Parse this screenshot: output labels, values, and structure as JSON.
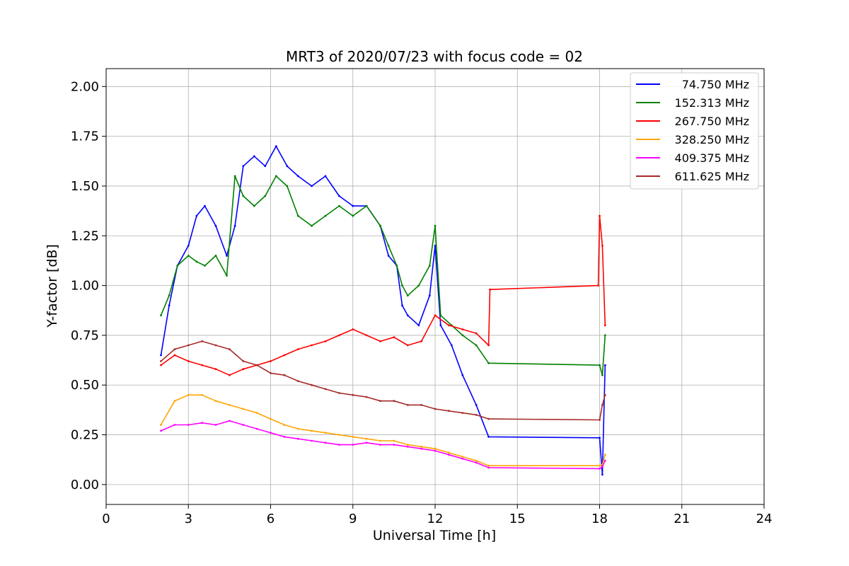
{
  "chart_data": {
    "type": "line",
    "title": "MRT3 of 2020/07/23 with focus code = 02",
    "xlabel": "Universal Time [h]",
    "ylabel": "Y-factor [dB]",
    "xlim": [
      0,
      24
    ],
    "ylim": [
      -0.1,
      2.09
    ],
    "xticks": [
      0,
      3,
      6,
      9,
      12,
      15,
      18,
      21,
      24
    ],
    "yticks": [
      0.0,
      0.25,
      0.5,
      0.75,
      1.0,
      1.25,
      1.5,
      1.75,
      2.0
    ],
    "xtick_labels": [
      "0",
      "3",
      "6",
      "9",
      "12",
      "15",
      "18",
      "21",
      "24"
    ],
    "ytick_labels": [
      "0.00",
      "0.25",
      "0.50",
      "0.75",
      "1.00",
      "1.25",
      "1.50",
      "1.75",
      "2.00"
    ],
    "grid": true,
    "legend_position": "top-right",
    "series": [
      {
        "name": "74.750 MHz",
        "color": "#0000ff",
        "x": [
          2.0,
          2.3,
          2.6,
          3.0,
          3.3,
          3.6,
          4.0,
          4.4,
          4.7,
          5.0,
          5.4,
          5.8,
          6.2,
          6.6,
          7.0,
          7.5,
          8.0,
          8.5,
          9.0,
          9.5,
          10.0,
          10.3,
          10.6,
          10.8,
          11.0,
          11.4,
          11.8,
          12.0,
          12.2,
          12.6,
          13.0,
          13.5,
          13.95,
          18.0,
          18.1,
          18.2
        ],
        "y": [
          0.65,
          0.9,
          1.1,
          1.2,
          1.35,
          1.4,
          1.3,
          1.15,
          1.3,
          1.6,
          1.65,
          1.6,
          1.7,
          1.6,
          1.55,
          1.5,
          1.55,
          1.45,
          1.4,
          1.4,
          1.3,
          1.15,
          1.1,
          0.9,
          0.85,
          0.8,
          0.95,
          1.2,
          0.8,
          0.7,
          0.55,
          0.4,
          0.24,
          0.235,
          0.05,
          0.6
        ]
      },
      {
        "name": "152.313 MHz",
        "color": "#008000",
        "x": [
          2.0,
          2.3,
          2.6,
          3.0,
          3.3,
          3.6,
          4.0,
          4.4,
          4.7,
          5.0,
          5.4,
          5.8,
          6.2,
          6.6,
          7.0,
          7.5,
          8.0,
          8.5,
          9.0,
          9.5,
          10.0,
          10.3,
          10.6,
          10.8,
          11.0,
          11.4,
          11.8,
          12.0,
          12.2,
          12.6,
          13.0,
          13.5,
          13.95,
          18.0,
          18.1,
          18.2
        ],
        "y": [
          0.85,
          0.95,
          1.1,
          1.15,
          1.12,
          1.1,
          1.15,
          1.05,
          1.55,
          1.45,
          1.4,
          1.45,
          1.55,
          1.5,
          1.35,
          1.3,
          1.35,
          1.4,
          1.35,
          1.4,
          1.3,
          1.2,
          1.1,
          1.0,
          0.95,
          1.0,
          1.1,
          1.3,
          0.85,
          0.8,
          0.75,
          0.7,
          0.61,
          0.6,
          0.55,
          0.75
        ]
      },
      {
        "name": "267.750 MHz",
        "color": "#ff0000",
        "x": [
          2.0,
          2.5,
          3.0,
          3.5,
          4.0,
          4.5,
          5.0,
          5.5,
          6.0,
          6.5,
          7.0,
          7.5,
          8.0,
          8.5,
          9.0,
          9.5,
          10.0,
          10.5,
          11.0,
          11.5,
          12.0,
          12.5,
          13.0,
          13.5,
          13.95,
          14.0,
          17.95,
          18.0,
          18.1,
          18.2
        ],
        "y": [
          0.6,
          0.65,
          0.62,
          0.6,
          0.58,
          0.55,
          0.58,
          0.6,
          0.62,
          0.65,
          0.68,
          0.7,
          0.72,
          0.75,
          0.78,
          0.75,
          0.72,
          0.74,
          0.7,
          0.72,
          0.85,
          0.8,
          0.78,
          0.76,
          0.7,
          0.98,
          1.0,
          1.35,
          1.2,
          0.8
        ]
      },
      {
        "name": "328.250 MHz",
        "color": "#ffa500",
        "x": [
          2.0,
          2.5,
          3.0,
          3.5,
          4.0,
          4.5,
          5.0,
          5.5,
          6.0,
          6.5,
          7.0,
          7.5,
          8.0,
          8.5,
          9.0,
          9.5,
          10.0,
          10.5,
          11.0,
          11.5,
          12.0,
          12.5,
          13.0,
          13.5,
          13.95,
          18.0,
          18.1,
          18.2
        ],
        "y": [
          0.3,
          0.42,
          0.45,
          0.45,
          0.42,
          0.4,
          0.38,
          0.36,
          0.33,
          0.3,
          0.28,
          0.27,
          0.26,
          0.25,
          0.24,
          0.23,
          0.22,
          0.22,
          0.2,
          0.19,
          0.18,
          0.16,
          0.14,
          0.12,
          0.095,
          0.095,
          0.1,
          0.15
        ]
      },
      {
        "name": "409.375 MHz",
        "color": "#ff00ff",
        "x": [
          2.0,
          2.5,
          3.0,
          3.5,
          4.0,
          4.5,
          5.0,
          5.5,
          6.0,
          6.5,
          7.0,
          7.5,
          8.0,
          8.5,
          9.0,
          9.5,
          10.0,
          10.5,
          11.0,
          11.5,
          12.0,
          12.5,
          13.0,
          13.5,
          13.95,
          18.0,
          18.1,
          18.2
        ],
        "y": [
          0.27,
          0.3,
          0.3,
          0.31,
          0.3,
          0.32,
          0.3,
          0.28,
          0.26,
          0.24,
          0.23,
          0.22,
          0.21,
          0.2,
          0.2,
          0.21,
          0.2,
          0.2,
          0.19,
          0.18,
          0.17,
          0.15,
          0.13,
          0.11,
          0.085,
          0.08,
          0.09,
          0.12
        ]
      },
      {
        "name": "611.625 MHz",
        "color": "#a52a2a",
        "x": [
          2.0,
          2.5,
          3.0,
          3.5,
          4.0,
          4.5,
          5.0,
          5.5,
          6.0,
          6.5,
          7.0,
          7.5,
          8.0,
          8.5,
          9.0,
          9.5,
          10.0,
          10.5,
          11.0,
          11.5,
          12.0,
          12.5,
          13.0,
          13.5,
          13.95,
          18.0,
          18.1,
          18.2
        ],
        "y": [
          0.62,
          0.68,
          0.7,
          0.72,
          0.7,
          0.68,
          0.62,
          0.6,
          0.56,
          0.55,
          0.52,
          0.5,
          0.48,
          0.46,
          0.45,
          0.44,
          0.42,
          0.42,
          0.4,
          0.4,
          0.38,
          0.37,
          0.36,
          0.35,
          0.33,
          0.325,
          0.4,
          0.45
        ]
      }
    ]
  }
}
